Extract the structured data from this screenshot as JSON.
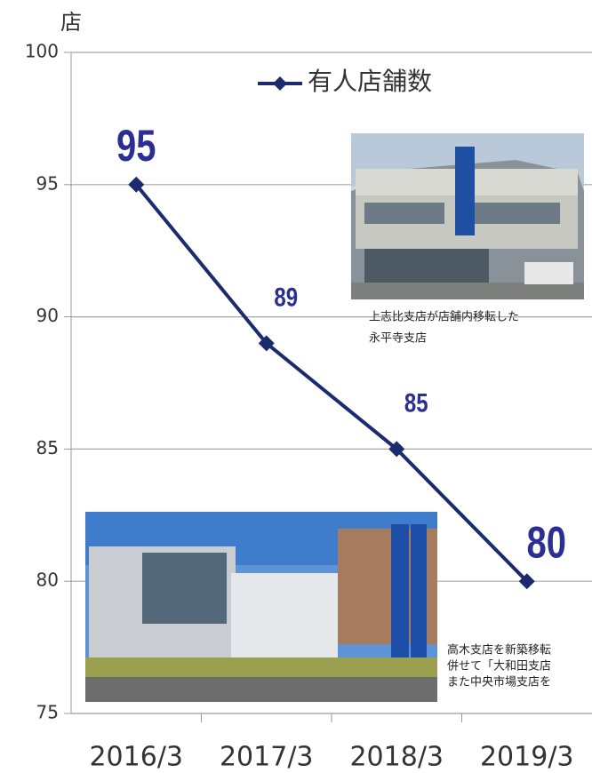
{
  "chart_data": {
    "type": "line",
    "y_unit": "店",
    "categories": [
      "2016/3",
      "2017/3",
      "2018/3",
      "2019/3"
    ],
    "series": [
      {
        "name": "有人店舗数",
        "color": "#1c2a6e",
        "values": [
          95,
          89,
          85,
          80
        ]
      }
    ],
    "ylim": [
      75,
      100
    ],
    "yticks": [
      75,
      80,
      85,
      90,
      95,
      100
    ],
    "grid": true,
    "data_labels": true
  },
  "photos": [
    {
      "caption": [
        "上志比支店が店舗内移転した",
        "永平寺支店"
      ]
    },
    {
      "caption": [
        "高木支店を新築移転",
        "併せて「大和田支店",
        "また中央市場支店を"
      ]
    }
  ]
}
